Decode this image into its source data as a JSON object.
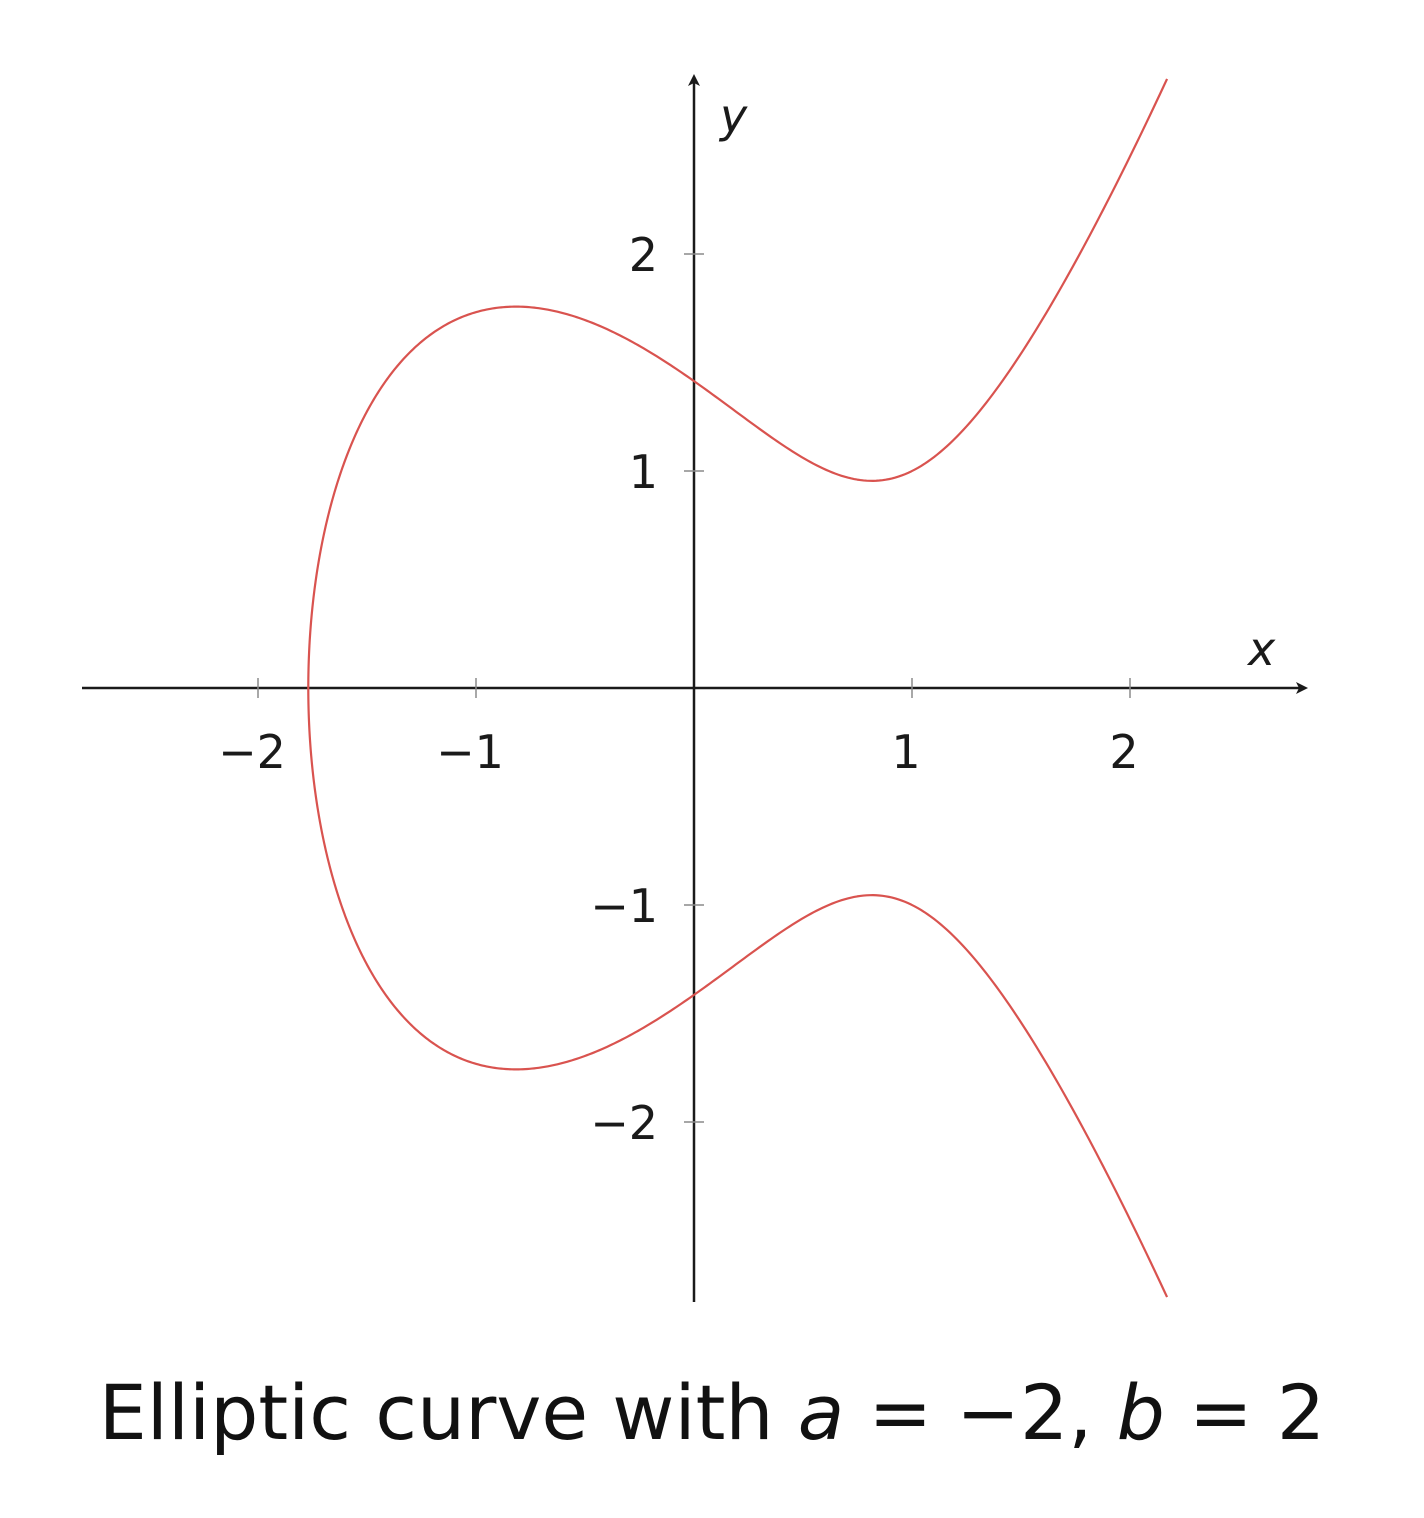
{
  "chart_data": {
    "type": "line",
    "title": "Elliptic curve with a = −2, b = 2",
    "equation_params": {
      "a": -2,
      "b": 2
    },
    "xlabel": "x",
    "ylabel": "y",
    "xlim": [
      -2.8,
      2.8
    ],
    "ylim": [
      -2.8,
      2.8
    ],
    "x_ticks": [
      -2,
      -1,
      1,
      2
    ],
    "x_tick_labels": [
      "−2",
      "−1",
      "1",
      "2"
    ],
    "y_ticks": [
      2,
      1,
      -1,
      -2
    ],
    "y_tick_labels": [
      "2",
      "1",
      "−1",
      "−2"
    ],
    "grid": false,
    "series": [
      {
        "color": "#d9534f",
        "x": [
          -1.769,
          -1.75,
          -1.7,
          -1.6,
          -1.5,
          -1.4,
          -1.3,
          -1.2,
          -1.1,
          -1.0,
          -0.9,
          -0.8,
          -0.7,
          -0.6,
          -0.5,
          -0.4,
          -0.3,
          -0.2,
          -0.1,
          0.0,
          0.1,
          0.2,
          0.3,
          0.4,
          0.5,
          0.6,
          0.7,
          0.8,
          0.9,
          1.0,
          1.1,
          1.2,
          1.3,
          1.4,
          1.5,
          1.6,
          1.7,
          1.8,
          1.9,
          2.0,
          2.1,
          2.17
        ],
        "y_upper": [
          0.0,
          0.318,
          0.632,
          0.985,
          1.225,
          1.405,
          1.54,
          1.641,
          1.712,
          1.732,
          1.735,
          1.718,
          1.684,
          1.636,
          1.581,
          1.52,
          1.457,
          1.397,
          1.343,
          1.414,
          1.345,
          1.274,
          1.202,
          1.133,
          1.07,
          1.018,
          0.981,
          0.963,
          0.967,
          1.0,
          1.062,
          1.149,
          1.258,
          1.387,
          1.536,
          1.703,
          1.888,
          2.088,
          2.305,
          2.449,
          2.68,
          2.82
        ]
      }
    ]
  },
  "caption": {
    "prefix": "Elliptic curve with ",
    "a_symbol": "a",
    "a_rest": " = −2, ",
    "b_symbol": "b",
    "b_rest": " = 2"
  }
}
